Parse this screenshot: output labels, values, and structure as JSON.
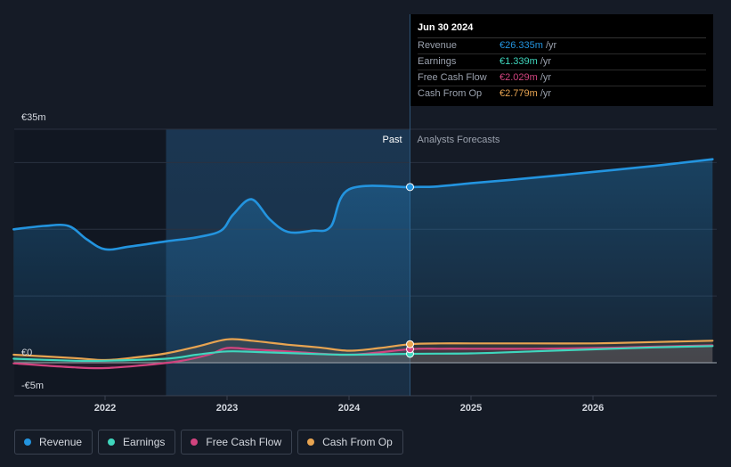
{
  "chart_data": {
    "type": "line",
    "y_tick_labels": [
      "€35m",
      "€0",
      "-€5m"
    ],
    "ylim": [
      -5,
      35
    ],
    "x_tick_labels": [
      "2022",
      "2023",
      "2024",
      "2025",
      "2026"
    ],
    "x_ticks": [
      2022,
      2023,
      2024,
      2025,
      2026
    ],
    "xlim": [
      2021.2,
      2026.98
    ],
    "past_label": "Past",
    "forecast_label": "Analysts Forecasts",
    "past_band": [
      2022.5,
      2024.5
    ],
    "divider": 2024.5,
    "grid": true,
    "legend_position": "bottom-left",
    "series": [
      {
        "name": "Revenue",
        "color": "#2394df",
        "points": [
          [
            2021.25,
            20.0
          ],
          [
            2021.5,
            20.5
          ],
          [
            2021.7,
            20.5
          ],
          [
            2021.85,
            18.5
          ],
          [
            2022.0,
            17.0
          ],
          [
            2022.2,
            17.4
          ],
          [
            2022.5,
            18.2
          ],
          [
            2022.75,
            18.8
          ],
          [
            2022.95,
            19.8
          ],
          [
            2023.05,
            22.2
          ],
          [
            2023.2,
            24.5
          ],
          [
            2023.35,
            21.5
          ],
          [
            2023.5,
            19.6
          ],
          [
            2023.7,
            19.8
          ],
          [
            2023.85,
            20.4
          ],
          [
            2024.0,
            26.0
          ],
          [
            2024.5,
            26.335
          ],
          [
            2024.7,
            26.4
          ],
          [
            2025.0,
            26.9
          ],
          [
            2025.5,
            27.7
          ],
          [
            2026.0,
            28.6
          ],
          [
            2026.5,
            29.5
          ],
          [
            2026.98,
            30.5
          ]
        ]
      },
      {
        "name": "Earnings",
        "color": "#3fd6bd",
        "points": [
          [
            2021.25,
            0.6
          ],
          [
            2021.75,
            0.3
          ],
          [
            2022.0,
            0.3
          ],
          [
            2022.5,
            0.6
          ],
          [
            2022.75,
            1.2
          ],
          [
            2023.0,
            1.7
          ],
          [
            2023.25,
            1.6
          ],
          [
            2023.75,
            1.3
          ],
          [
            2024.0,
            1.2
          ],
          [
            2024.5,
            1.339
          ],
          [
            2025.0,
            1.4
          ],
          [
            2025.5,
            1.7
          ],
          [
            2026.0,
            2.0
          ],
          [
            2026.5,
            2.3
          ],
          [
            2026.98,
            2.5
          ]
        ]
      },
      {
        "name": "Free Cash Flow",
        "color": "#d1447f",
        "points": [
          [
            2021.25,
            -0.1
          ],
          [
            2021.75,
            -0.7
          ],
          [
            2022.0,
            -0.8
          ],
          [
            2022.3,
            -0.4
          ],
          [
            2022.6,
            0.2
          ],
          [
            2022.85,
            1.2
          ],
          [
            2023.0,
            2.2
          ],
          [
            2023.2,
            2.0
          ],
          [
            2023.5,
            1.7
          ],
          [
            2024.0,
            1.2
          ],
          [
            2024.5,
            2.029
          ],
          [
            2024.75,
            2.1
          ],
          [
            2025.0,
            2.1
          ],
          [
            2025.5,
            2.1
          ],
          [
            2026.0,
            2.2
          ],
          [
            2026.5,
            2.4
          ],
          [
            2026.98,
            2.6
          ]
        ]
      },
      {
        "name": "Cash From Op",
        "color": "#e8a451",
        "points": [
          [
            2021.25,
            1.2
          ],
          [
            2021.75,
            0.7
          ],
          [
            2022.0,
            0.4
          ],
          [
            2022.25,
            0.8
          ],
          [
            2022.5,
            1.4
          ],
          [
            2022.75,
            2.4
          ],
          [
            2023.0,
            3.5
          ],
          [
            2023.2,
            3.3
          ],
          [
            2023.5,
            2.7
          ],
          [
            2023.75,
            2.3
          ],
          [
            2024.0,
            1.8
          ],
          [
            2024.25,
            2.2
          ],
          [
            2024.5,
            2.779
          ],
          [
            2024.75,
            2.9
          ],
          [
            2025.0,
            2.9
          ],
          [
            2025.5,
            2.9
          ],
          [
            2026.0,
            2.9
          ],
          [
            2026.5,
            3.1
          ],
          [
            2026.98,
            3.3
          ]
        ]
      }
    ]
  },
  "tooltip": {
    "date": "Jun 30 2024",
    "rows": [
      {
        "label": "Revenue",
        "value": "€26.335m",
        "unit": "/yr",
        "color": "#2394df"
      },
      {
        "label": "Earnings",
        "value": "€1.339m",
        "unit": "/yr",
        "color": "#3fd6bd"
      },
      {
        "label": "Free Cash Flow",
        "value": "€2.029m",
        "unit": "/yr",
        "color": "#d1447f"
      },
      {
        "label": "Cash From Op",
        "value": "€2.779m",
        "unit": "/yr",
        "color": "#e8a451"
      }
    ]
  },
  "legend": [
    {
      "label": "Revenue",
      "color": "#2394df"
    },
    {
      "label": "Earnings",
      "color": "#3fd6bd"
    },
    {
      "label": "Free Cash Flow",
      "color": "#d1447f"
    },
    {
      "label": "Cash From Op",
      "color": "#e8a451"
    }
  ]
}
